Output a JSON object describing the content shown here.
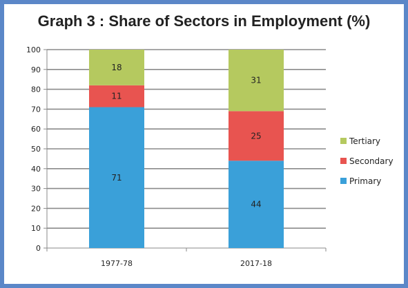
{
  "title": "Graph 3 : Share of Sectors in Employment (%)",
  "chart_data": {
    "type": "bar",
    "stacked": true,
    "title": "Graph 3 : Share of Sectors in Employment (%)",
    "categories": [
      "1977-78",
      "2017-18"
    ],
    "series": [
      {
        "name": "Primary",
        "values": [
          71,
          44
        ],
        "color": "#3aa0d9"
      },
      {
        "name": "Secondary",
        "values": [
          11,
          25
        ],
        "color": "#e85450"
      },
      {
        "name": "Tertiary",
        "values": [
          18,
          31
        ],
        "color": "#b5c95f"
      }
    ],
    "ylim": [
      0,
      100
    ],
    "yticks": [
      0,
      10,
      20,
      30,
      40,
      50,
      60,
      70,
      80,
      90,
      100
    ],
    "grid": true,
    "legend": "right"
  }
}
